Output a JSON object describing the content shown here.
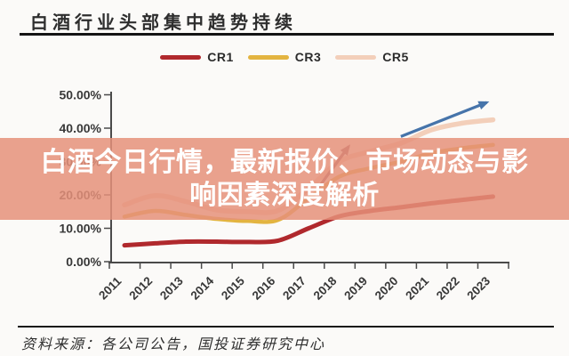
{
  "header": {
    "title": "白酒行业头部集中趋势持续"
  },
  "overlay": {
    "line1": "白酒今日行情，最新报价、市场动态与影",
    "line2": "响因素深度解析",
    "bg": "#e5907a",
    "alpha": 0.85,
    "text_color": "#ffffff"
  },
  "footer": {
    "source": "资料来源：各公司公告，国投证券研究中心"
  },
  "colors": {
    "axis": "#4a4a4a",
    "tick_label": "#383838",
    "title_text": "#2e2e2e",
    "background": "#fbfaf8"
  },
  "chart_data": {
    "type": "line",
    "title": "白酒行业头部集中趋势持续",
    "xlabel": "",
    "ylabel": "",
    "ylim": [
      0,
      50
    ],
    "grid": false,
    "legend_position": "top",
    "categories": [
      "2011",
      "2012",
      "2013",
      "2014",
      "2015",
      "2016",
      "2017",
      "2018",
      "2019",
      "2020",
      "2021",
      "2022",
      "2023"
    ],
    "yticks": [
      "0.00%",
      "10.00%",
      "20.00%",
      "30.00%",
      "40.00%",
      "50.00%"
    ],
    "series": [
      {
        "name": "CR1",
        "color": "#b0292d",
        "values": [
          4.9,
          5.5,
          6.0,
          6.0,
          5.9,
          6.3,
          10.0,
          13.6,
          15.2,
          16.3,
          17.5,
          18.5,
          19.5
        ]
      },
      {
        "name": "CR3",
        "color": "#e3b440",
        "values": [
          13.5,
          15.2,
          14.0,
          12.8,
          12.2,
          12.5,
          19.0,
          25.5,
          28.0,
          30.0,
          32.5,
          34.0,
          35.0
        ]
      },
      {
        "name": "CR5",
        "color": "#f3cfba",
        "values": [
          17.0,
          19.8,
          18.0,
          15.5,
          15.0,
          15.3,
          22.0,
          30.0,
          33.0,
          35.5,
          39.5,
          41.5,
          42.5
        ]
      }
    ],
    "annotations": [
      {
        "id": "trend-arrow-dark",
        "type": "arrow",
        "color": "#96505e",
        "from": {
          "x": 2017.3,
          "y": 22.0
        },
        "to": {
          "x": 2018.3,
          "y": 34.5
        }
      },
      {
        "id": "trend-arrow-blue",
        "type": "arrow",
        "color": "#4674aa",
        "from": {
          "x": 2020.0,
          "y": 37.5
        },
        "to": {
          "x": 2022.8,
          "y": 47.7
        }
      }
    ]
  }
}
